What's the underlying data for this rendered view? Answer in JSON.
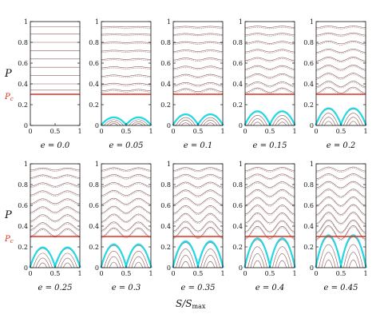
{
  "figure": {
    "y_label": "P",
    "pc_label": "Pc",
    "x_label": "S/Smax"
  },
  "colors": {
    "critical_line": "#e0301e",
    "separatrix": "#22d8e6",
    "orbit": "#8a5a5a",
    "axis": "#111111"
  },
  "chart_data": [
    {
      "type": "line",
      "caption": "e = 0.0",
      "e": 0.0,
      "xlim": [
        0,
        1
      ],
      "ylim": [
        0,
        1
      ],
      "pc": 0.3,
      "x_ticks": [
        "0",
        "0.5",
        "1"
      ],
      "y_ticks": [
        "0",
        "0.2",
        "0.4",
        "0.6",
        "0.8",
        "1"
      ]
    },
    {
      "type": "line",
      "caption": "e = 0.05",
      "e": 0.05,
      "xlim": [
        0,
        1
      ],
      "ylim": [
        0,
        1
      ],
      "pc": 0.3,
      "x_ticks": [
        "0",
        "0.5",
        "1"
      ],
      "y_ticks": [
        "0",
        "0.2",
        "0.4",
        "0.6",
        "0.8",
        "1"
      ]
    },
    {
      "type": "line",
      "caption": "e = 0.1",
      "e": 0.1,
      "xlim": [
        0,
        1
      ],
      "ylim": [
        0,
        1
      ],
      "pc": 0.3,
      "x_ticks": [
        "0",
        "0.5",
        "1"
      ],
      "y_ticks": [
        "0",
        "0.2",
        "0.4",
        "0.6",
        "0.8",
        "1"
      ]
    },
    {
      "type": "line",
      "caption": "e = 0.15",
      "e": 0.15,
      "xlim": [
        0,
        1
      ],
      "ylim": [
        0,
        1
      ],
      "pc": 0.3,
      "x_ticks": [
        "0",
        "0.5",
        "1"
      ],
      "y_ticks": [
        "0",
        "0.2",
        "0.4",
        "0.6",
        "0.8",
        "1"
      ]
    },
    {
      "type": "line",
      "caption": "e = 0.2",
      "e": 0.2,
      "xlim": [
        0,
        1
      ],
      "ylim": [
        0,
        1
      ],
      "pc": 0.3,
      "x_ticks": [
        "0",
        "0.5",
        "1"
      ],
      "y_ticks": [
        "0",
        "0.2",
        "0.4",
        "0.6",
        "0.8",
        "1"
      ]
    },
    {
      "type": "line",
      "caption": "e = 0.25",
      "e": 0.25,
      "xlim": [
        0,
        1
      ],
      "ylim": [
        0,
        1
      ],
      "pc": 0.3,
      "x_ticks": [
        "0",
        "0.5",
        "1"
      ],
      "y_ticks": [
        "0",
        "0.2",
        "0.4",
        "0.6",
        "0.8",
        "1"
      ]
    },
    {
      "type": "line",
      "caption": "e = 0.3",
      "e": 0.3,
      "xlim": [
        0,
        1
      ],
      "ylim": [
        0,
        1
      ],
      "pc": 0.3,
      "x_ticks": [
        "0",
        "0.5",
        "1"
      ],
      "y_ticks": [
        "0",
        "0.2",
        "0.4",
        "0.6",
        "0.8",
        "1"
      ]
    },
    {
      "type": "line",
      "caption": "e = 0.35",
      "e": 0.35,
      "xlim": [
        0,
        1
      ],
      "ylim": [
        0,
        1
      ],
      "pc": 0.3,
      "x_ticks": [
        "0",
        "0.5",
        "1"
      ],
      "y_ticks": [
        "0",
        "0.2",
        "0.4",
        "0.6",
        "0.8",
        "1"
      ]
    },
    {
      "type": "line",
      "caption": "e = 0.4",
      "e": 0.4,
      "xlim": [
        0,
        1
      ],
      "ylim": [
        0,
        1
      ],
      "pc": 0.3,
      "x_ticks": [
        "0",
        "0.5",
        "1"
      ],
      "y_ticks": [
        "0",
        "0.2",
        "0.4",
        "0.6",
        "0.8",
        "1"
      ]
    },
    {
      "type": "line",
      "caption": "e = 0.45",
      "e": 0.45,
      "xlim": [
        0,
        1
      ],
      "ylim": [
        0,
        1
      ],
      "pc": 0.3,
      "x_ticks": [
        "0",
        "0.5",
        "1"
      ],
      "y_ticks": [
        "0",
        "0.2",
        "0.4",
        "0.6",
        "0.8",
        "1"
      ]
    }
  ]
}
